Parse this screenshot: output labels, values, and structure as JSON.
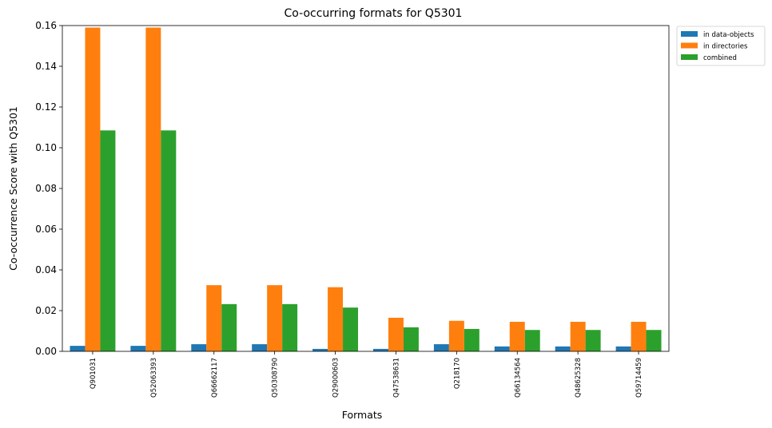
{
  "chart_data": {
    "type": "bar",
    "title": "Co-occurring formats for Q5301",
    "xlabel": "Formats",
    "ylabel": "Co-occurrence Score with Q5301",
    "ylim": [
      0,
      0.16
    ],
    "yticks": [
      0,
      0.02,
      0.04,
      0.06,
      0.08,
      0.1,
      0.12,
      0.14,
      0.16
    ],
    "ytick_labels": [
      "0.00",
      "0.02",
      "0.04",
      "0.06",
      "0.08",
      "0.10",
      "0.12",
      "0.14",
      "0.16"
    ],
    "legend_position": "outside-top-right",
    "grid": false,
    "categories": [
      "Q901031",
      "Q52063393",
      "Q66662117",
      "Q50308790",
      "Q29000603",
      "Q47538631",
      "Q218170",
      "Q66134564",
      "Q48625328",
      "Q59714459"
    ],
    "series": [
      {
        "name": "in data-objects",
        "color": "#1f77b4",
        "values": [
          0.0027,
          0.0027,
          0.0035,
          0.0035,
          0.0012,
          0.0012,
          0.0035,
          0.0024,
          0.0024,
          0.0024
        ]
      },
      {
        "name": "in directories",
        "color": "#ff7f0e",
        "values": [
          0.159,
          0.159,
          0.0325,
          0.0325,
          0.0315,
          0.0165,
          0.015,
          0.0145,
          0.0145,
          0.0145
        ]
      },
      {
        "name": "combined",
        "color": "#2ca02c",
        "values": [
          0.1085,
          0.1085,
          0.0232,
          0.0232,
          0.0215,
          0.0118,
          0.011,
          0.0105,
          0.0105,
          0.0105
        ]
      }
    ]
  }
}
